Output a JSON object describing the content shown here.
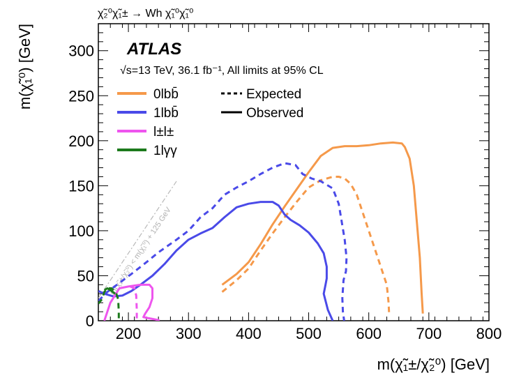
{
  "chart_data": {
    "type": "line",
    "process_label": "χ̃₂⁰χ̃₁± → Wh χ̃₁⁰χ̃₁⁰",
    "experiment_label": "ATLAS",
    "info_label": "√s=13 TeV, 36.1 fb⁻¹, All limits at 95% CL",
    "xlabel": "m(χ̃₁±/χ̃₂⁰) [GeV]",
    "ylabel": "m(χ̃₁⁰) [GeV]",
    "xlim": [
      150,
      800
    ],
    "ylim": [
      0,
      330
    ],
    "x_ticks": [
      200,
      300,
      400,
      500,
      600,
      700,
      800
    ],
    "y_ticks": [
      0,
      50,
      100,
      150,
      200,
      250,
      300
    ],
    "x_tick_labels": [
      "200",
      "300",
      "400",
      "500",
      "600",
      "700",
      "800"
    ],
    "y_tick_labels": [
      "0",
      "50",
      "100",
      "150",
      "200",
      "250",
      "300"
    ],
    "grid": false,
    "legend_position": "top-left",
    "style_legend": [
      {
        "label": "Expected",
        "dash": "dashed"
      },
      {
        "label": "Observed",
        "dash": "solid"
      }
    ],
    "kinematic_line": {
      "label": "m(χ̃₁±/χ̃₂⁰) < m(χ̃₁⁰) + 125 GeV",
      "x": [
        150,
        280
      ],
      "y": [
        25,
        155
      ]
    },
    "series": [
      {
        "name": "0lbb̄",
        "color": "#f5994a",
        "observed": {
          "x": [
            356,
            380,
            400,
            420,
            440,
            460,
            480,
            500,
            520,
            540,
            560,
            580,
            600,
            620,
            640,
            655,
            660,
            668,
            675,
            680,
            685,
            688,
            690
          ],
          "y": [
            40,
            52,
            65,
            85,
            107,
            127,
            146,
            165,
            183,
            192,
            194,
            194,
            195,
            197,
            198,
            197,
            193,
            180,
            150,
            110,
            70,
            30,
            8
          ]
        },
        "expected": {
          "x": [
            356,
            380,
            400,
            420,
            440,
            460,
            480,
            500,
            520,
            540,
            550,
            560,
            570,
            580,
            590,
            600,
            610,
            620,
            630,
            633,
            634
          ],
          "y": [
            32,
            45,
            58,
            78,
            97,
            115,
            132,
            148,
            156,
            160,
            160,
            158,
            152,
            140,
            120,
            100,
            80,
            60,
            40,
            20,
            5
          ]
        }
      },
      {
        "name": "1lbb̄",
        "color": "#4a4ae8",
        "observed": {
          "x": [
            150,
            160,
            175,
            190,
            205,
            220,
            240,
            260,
            280,
            300,
            320,
            340,
            360,
            380,
            400,
            420,
            440,
            450,
            460,
            470,
            485,
            500,
            515,
            525,
            530,
            530,
            528,
            525,
            532,
            540
          ],
          "y": [
            33,
            30,
            27,
            28,
            33,
            40,
            50,
            63,
            78,
            90,
            97,
            103,
            115,
            126,
            130,
            132,
            132,
            128,
            118,
            112,
            106,
            98,
            86,
            75,
            60,
            47,
            40,
            30,
            12,
            0
          ]
        },
        "expected": {
          "x": [
            150,
            165,
            185,
            205,
            230,
            250,
            280,
            300,
            320,
            340,
            360,
            380,
            400,
            420,
            440,
            460,
            478,
            490,
            505,
            520,
            540,
            550,
            555,
            560,
            563,
            562,
            558,
            556,
            557,
            559
          ],
          "y": [
            22,
            32,
            42,
            52,
            65,
            76,
            90,
            100,
            115,
            125,
            140,
            148,
            155,
            163,
            170,
            175,
            173,
            163,
            158,
            155,
            147,
            130,
            110,
            90,
            70,
            55,
            45,
            25,
            10,
            0
          ]
        }
      },
      {
        "name": "l±l±",
        "color": "#ee55ee",
        "observed": {
          "x": [
            160,
            170,
            185,
            200,
            220,
            235,
            240,
            240,
            235,
            228,
            225,
            232,
            240,
            248,
            252
          ],
          "y": [
            0,
            20,
            36,
            38,
            40,
            40,
            36,
            25,
            15,
            8,
            4,
            3,
            2,
            1,
            0
          ]
        },
        "expected": {
          "x": [
            203,
            210,
            213,
            214,
            214
          ],
          "y": [
            38,
            36,
            28,
            12,
            0
          ]
        }
      },
      {
        "name": "1lγγ",
        "color": "#1c7a1c",
        "observed": {
          "x": [
            160,
            165,
            170,
            178
          ],
          "y": [
            34,
            36,
            34,
            30
          ]
        },
        "expected": {
          "x": [
            150,
            156,
            160,
            165,
            172,
            180,
            183,
            184,
            184
          ],
          "y": [
            19,
            24,
            32,
            36,
            36,
            30,
            24,
            10,
            0
          ]
        }
      }
    ]
  }
}
